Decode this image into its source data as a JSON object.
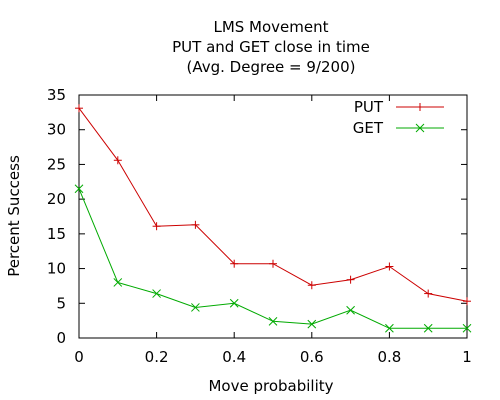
{
  "chart_data": {
    "type": "line",
    "title": "LMS Movement",
    "subtitle": "PUT and GET close in time",
    "subtitle2": "(Avg. Degree = 9/200)",
    "xlabel": "Move probability",
    "ylabel": "Percent Success",
    "xlim": [
      0,
      1
    ],
    "ylim": [
      0,
      35
    ],
    "x_ticks": [
      0,
      0.2,
      0.4,
      0.6,
      0.8,
      1
    ],
    "x_tick_labels": [
      "0",
      "0.2",
      "0.4",
      "0.6",
      "0.8",
      "1"
    ],
    "y_ticks": [
      0,
      5,
      10,
      15,
      20,
      25,
      30,
      35
    ],
    "y_tick_labels": [
      "0",
      "5",
      "10",
      "15",
      "20",
      "25",
      "30",
      "35"
    ],
    "grid": false,
    "legend_position": "top-right",
    "x": [
      0,
      0.1,
      0.2,
      0.3,
      0.4,
      0.5,
      0.6,
      0.7,
      0.8,
      0.9,
      1.0
    ],
    "series": [
      {
        "name": "PUT",
        "color": "#cc0000",
        "marker": "plus",
        "values": [
          33.1,
          25.6,
          16.1,
          16.3,
          10.7,
          10.7,
          7.6,
          8.4,
          10.3,
          6.4,
          5.3
        ]
      },
      {
        "name": "GET",
        "color": "#00aa00",
        "marker": "cross",
        "values": [
          21.5,
          8.0,
          6.4,
          4.4,
          5.0,
          2.4,
          2.0,
          4.0,
          1.4,
          1.4,
          1.4
        ]
      }
    ]
  }
}
